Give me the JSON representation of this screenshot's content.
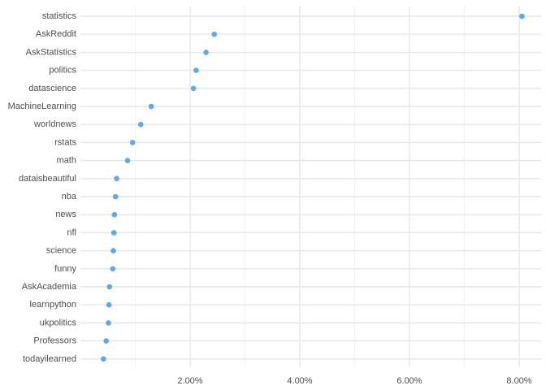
{
  "chart_data": {
    "type": "scatter",
    "title": "",
    "xlabel": "",
    "ylabel": "",
    "xlim": [
      0.0,
      8.4
    ],
    "x_major_ticks": [
      2,
      4,
      6,
      8
    ],
    "x_minor_ticks": [
      1,
      3,
      5,
      7
    ],
    "x_tick_labels": [
      "2.00%",
      "4.00%",
      "6.00%",
      "8.00%"
    ],
    "grid": true,
    "point_color": "#5aa9f7",
    "categories": [
      "statistics",
      "AskReddit",
      "AskStatistics",
      "politics",
      "datascience",
      "MachineLearning",
      "worldnews",
      "rstats",
      "math",
      "dataisbeautiful",
      "nba",
      "news",
      "nfl",
      "science",
      "funny",
      "AskAcademia",
      "learnpython",
      "ukpolitics",
      "Professors",
      "todayilearned"
    ],
    "values": [
      8.05,
      2.44,
      2.29,
      2.11,
      2.06,
      1.29,
      1.1,
      0.95,
      0.86,
      0.66,
      0.64,
      0.62,
      0.61,
      0.6,
      0.59,
      0.53,
      0.52,
      0.51,
      0.47,
      0.42
    ]
  }
}
